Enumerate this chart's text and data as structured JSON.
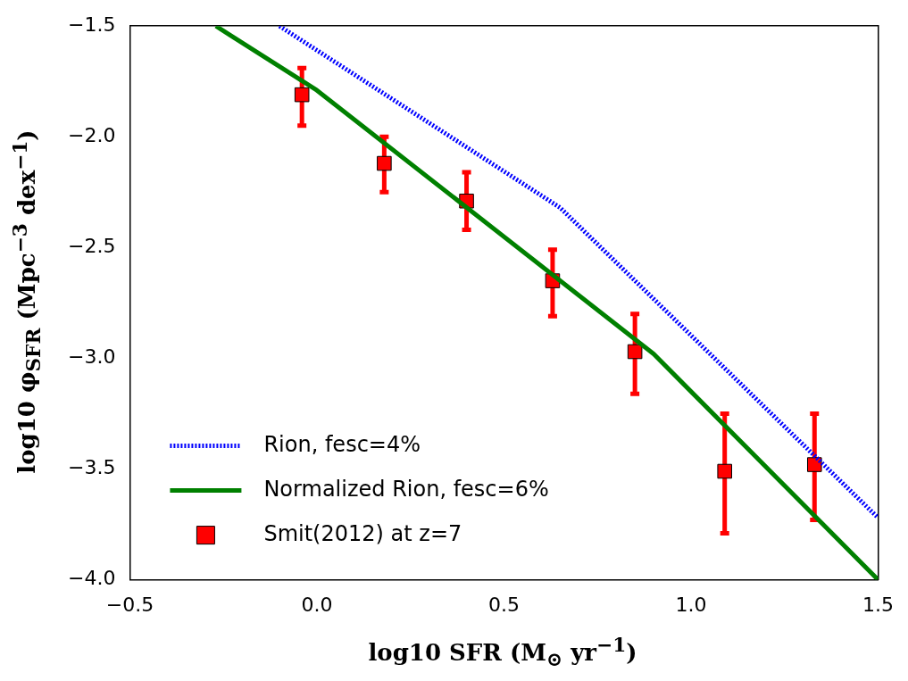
{
  "chart_data": {
    "type": "line",
    "xlabel": "log10 SFR (M$_{⊙}$ yr$^{−1}$)",
    "ylabel": "log10 φ$_{SFR}$ (Mpc$^{−3}$ dex$^{−1}$)",
    "xlim": [
      -0.5,
      1.5
    ],
    "ylim": [
      -4.0,
      -1.5
    ],
    "xticks": [
      {
        "value": -0.5,
        "label": "−0.5"
      },
      {
        "value": 0,
        "label": "0.0"
      },
      {
        "value": 0.5,
        "label": "0.5"
      },
      {
        "value": 1.0,
        "label": "1.0"
      },
      {
        "value": 1.5,
        "label": "1.5"
      }
    ],
    "yticks": [
      {
        "value": -4.0,
        "label": "−4.0"
      },
      {
        "value": -3.5,
        "label": "−3.5"
      },
      {
        "value": -3.0,
        "label": "−3.0"
      },
      {
        "value": -2.5,
        "label": "−2.5"
      },
      {
        "value": -2.0,
        "label": "−2.0"
      },
      {
        "value": -1.5,
        "label": "−1.5"
      }
    ],
    "grid": false,
    "legend": "bottom left",
    "series": [
      {
        "name": "Rion, fesc=4%",
        "color": "#0000ff",
        "line_style": "dotted",
        "x": [
          -0.1,
          0.65,
          1.5
        ],
        "values": [
          -1.5,
          -2.32,
          -3.72
        ]
      },
      {
        "name": "Normalized Rion, fesc=6%",
        "color": "#008000",
        "line_style": "solid",
        "x": [
          -0.27,
          0.0,
          0.9,
          1.5
        ],
        "values": [
          -1.5,
          -1.79,
          -2.98,
          -4.0
        ]
      },
      {
        "name": "Smit(2012) at z=7",
        "type": "scatter",
        "color": "#ff0000",
        "marker": "square",
        "x": [
          -0.04,
          0.18,
          0.4,
          0.63,
          0.85,
          1.09,
          1.33
        ],
        "values": [
          -1.81,
          -2.12,
          -2.29,
          -2.65,
          -2.97,
          -3.51,
          -3.48
        ],
        "errors": [
          [
            -1.95,
            -1.69
          ],
          [
            -2.25,
            -2.0
          ],
          [
            -2.42,
            -2.16
          ],
          [
            -2.81,
            -2.51
          ],
          [
            -3.16,
            -2.8
          ],
          [
            -3.79,
            -3.25
          ],
          [
            -3.73,
            -3.25
          ]
        ]
      }
    ]
  }
}
